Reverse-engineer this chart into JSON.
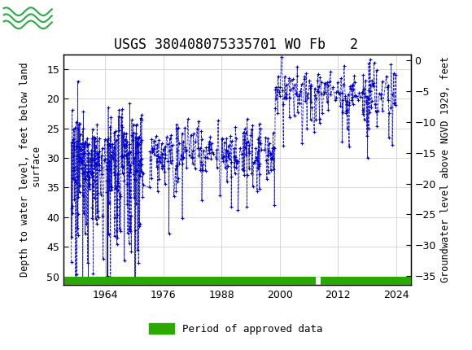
{
  "title": "USGS 380408075335701 WO Fb   2",
  "ylabel_left": "Depth to water level, feet below land\n surface",
  "ylabel_right": "Groundwater level above NGVD 1929, feet",
  "ylim_left": [
    51.5,
    12.5
  ],
  "ylim_right": [
    -36.5,
    1.0
  ],
  "yticks_left": [
    15,
    20,
    25,
    30,
    35,
    40,
    45,
    50
  ],
  "yticks_right": [
    0,
    -5,
    -10,
    -15,
    -20,
    -25,
    -30,
    -35
  ],
  "xlim": [
    1955.5,
    2027.0
  ],
  "xticks": [
    1964,
    1976,
    1988,
    2000,
    2012,
    2024
  ],
  "header_color": "#1a6b3c",
  "plot_bg": "#ffffff",
  "data_color": "#0000cc",
  "legend_label": "Period of approved data",
  "legend_color": "#2aaa00",
  "grid_color": "#c8c8c8",
  "title_fontsize": 12,
  "axis_label_fontsize": 8.5,
  "tick_fontsize": 9,
  "approved_gap_start": 2007.5,
  "approved_gap_end": 2008.5
}
